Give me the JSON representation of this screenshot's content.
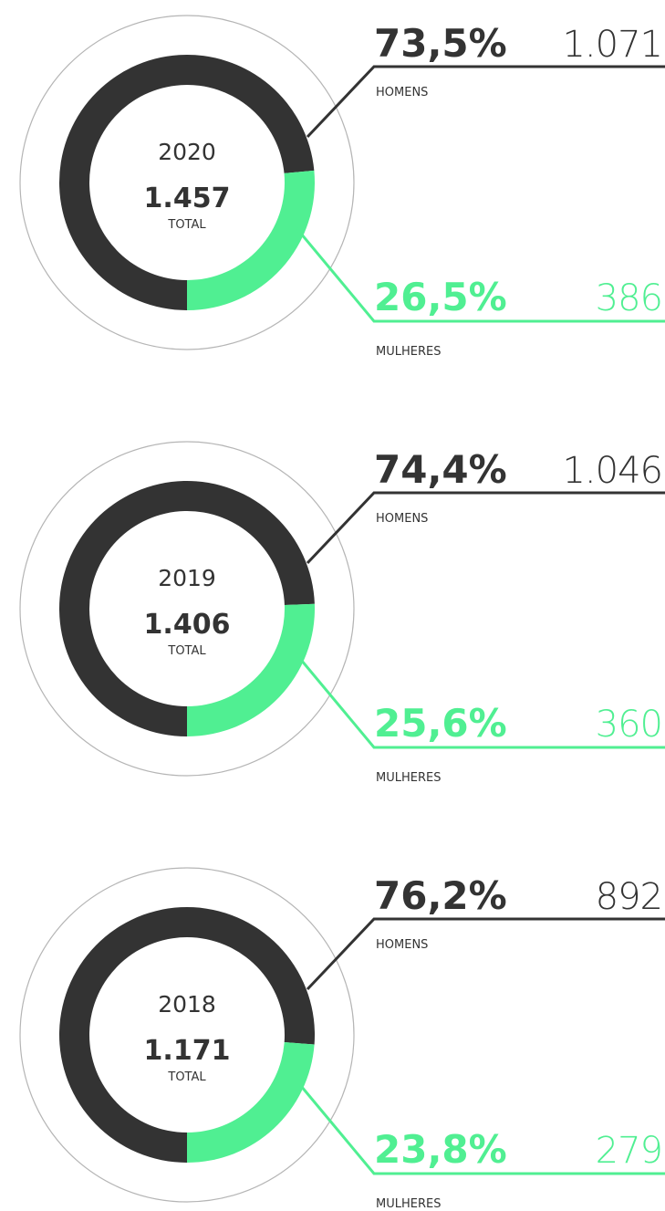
{
  "chart_data": [
    {
      "type": "donut",
      "title": "2020",
      "total": {
        "value": 1457,
        "label": "1.457"
      },
      "total_label": "TOTAL",
      "categories": [
        "HOMENS",
        "MULHERES"
      ],
      "values": [
        73.5,
        26.5
      ],
      "value_labels": [
        "73,5%",
        "26,5%"
      ],
      "counts": [
        {
          "value": 1071,
          "label": "1.071"
        },
        {
          "value": 386,
          "label": "386"
        }
      ],
      "colors": [
        "#333333",
        "#50ef92"
      ]
    },
    {
      "type": "donut",
      "title": "2019",
      "total": {
        "value": 1406,
        "label": "1.406"
      },
      "total_label": "TOTAL",
      "categories": [
        "HOMENS",
        "MULHERES"
      ],
      "values": [
        74.4,
        25.6
      ],
      "value_labels": [
        "74,4%",
        "25,6%"
      ],
      "counts": [
        {
          "value": 1046,
          "label": "1.046"
        },
        {
          "value": 360,
          "label": "360"
        }
      ],
      "colors": [
        "#333333",
        "#50ef92"
      ]
    },
    {
      "type": "donut",
      "title": "2018",
      "total": {
        "value": 1171,
        "label": "1.171"
      },
      "total_label": "TOTAL",
      "categories": [
        "HOMENS",
        "MULHERES"
      ],
      "values": [
        76.2,
        23.8
      ],
      "value_labels": [
        "76,2%",
        "23,8%"
      ],
      "counts": [
        {
          "value": 892,
          "label": "892"
        },
        {
          "value": 279,
          "label": "279"
        }
      ],
      "colors": [
        "#333333",
        "#50ef92"
      ]
    }
  ]
}
